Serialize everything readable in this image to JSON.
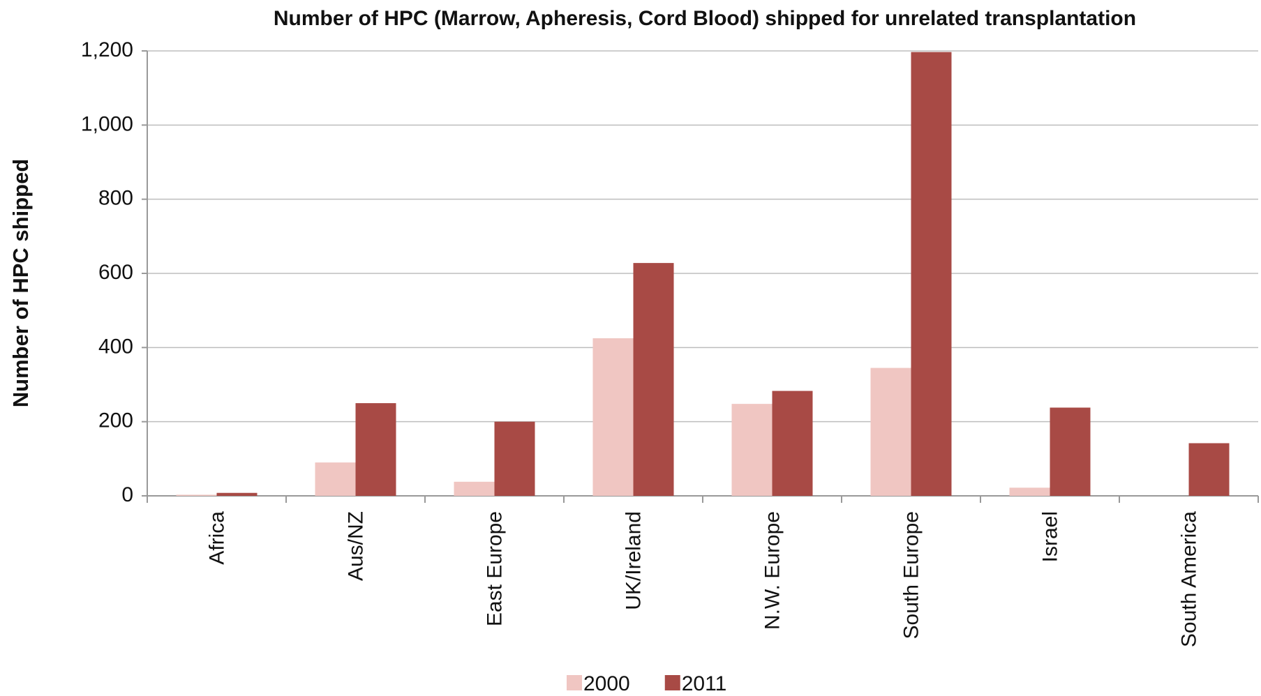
{
  "chart_data": {
    "type": "bar",
    "title": "Number of  HPC (Marrow, Apheresis, Cord Blood) shipped for unrelated transplantation",
    "y_label": "Number of HPC shipped",
    "categories": [
      "Africa",
      "Aus/NZ",
      "East Europe",
      "UK/Ireland",
      "N.W. Europe",
      "South Europe",
      "Israel",
      "South America"
    ],
    "series": [
      {
        "name": "2000",
        "color": "#f0c6c2",
        "values": [
          3,
          90,
          38,
          425,
          248,
          345,
          22,
          0
        ]
      },
      {
        "name": "2011",
        "color": "#a84a45",
        "values": [
          8,
          250,
          200,
          628,
          283,
          1197,
          238,
          142
        ]
      }
    ],
    "ylim": [
      0,
      1200
    ],
    "yticks": [
      0,
      200,
      400,
      600,
      800,
      {
        "value": 1000,
        "label": "1,000"
      },
      {
        "value": 1200,
        "label": "1,200"
      }
    ],
    "grid": true,
    "legend": "bottom"
  }
}
